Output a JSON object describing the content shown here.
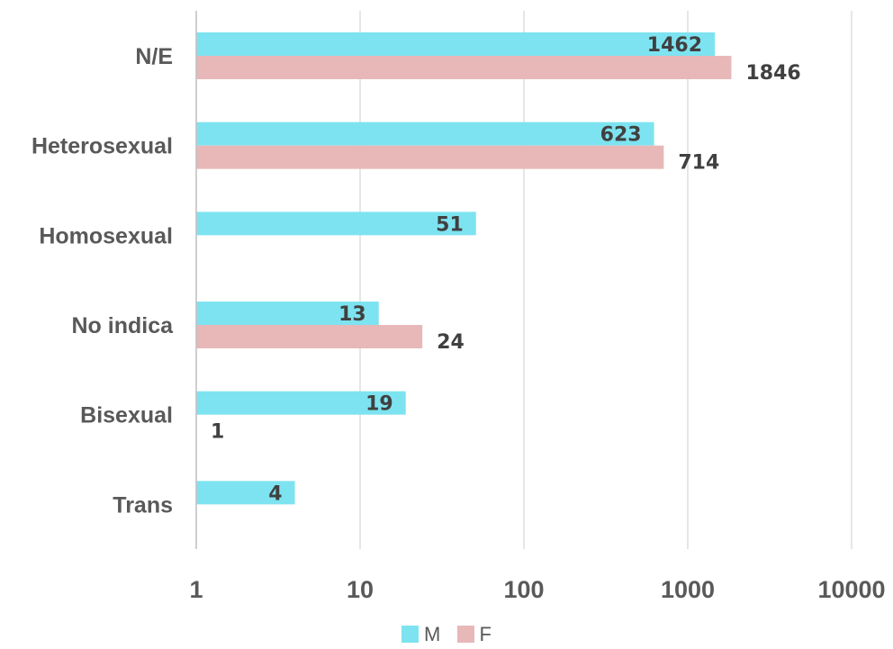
{
  "chart_data": {
    "type": "bar",
    "orientation": "horizontal",
    "x_scale": "log",
    "xlim": [
      1,
      10000
    ],
    "x_ticks": [
      "1",
      "10",
      "100",
      "1000",
      "10000"
    ],
    "grid": true,
    "legend_position": "bottom",
    "categories": [
      "N/E",
      "Heterosexual",
      "Homosexual",
      "No indica",
      "Bisexual",
      "Trans"
    ],
    "series": [
      {
        "name": "M",
        "color": "#7EE3F0",
        "values": [
          1462,
          623,
          51,
          13,
          19,
          4
        ]
      },
      {
        "name": "F",
        "color": "#E8B8B8",
        "values": [
          1846,
          714,
          null,
          24,
          1,
          null
        ]
      }
    ]
  }
}
